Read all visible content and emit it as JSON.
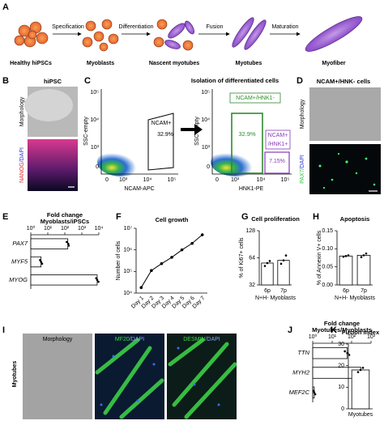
{
  "panel_labels": [
    "A",
    "B",
    "C",
    "D",
    "E",
    "F",
    "G",
    "H",
    "I",
    "J",
    "K"
  ],
  "schematic": {
    "stages": [
      "Healthy hiPSCs",
      "Myoblasts",
      "Nascent myotubes",
      "Myotubes",
      "Myofiber"
    ],
    "steps": [
      "Specification",
      "Differentiation",
      "Fusion",
      "Maturation"
    ]
  },
  "hipsc": {
    "title": "hiPSC",
    "row_label": "Morphology",
    "stain": [
      "NANOG",
      "/DAPI"
    ]
  },
  "flow": {
    "title": "Isolation of differentiated cells",
    "plots": [
      {
        "ylabel": "SSC-empty",
        "xlabel": "NCAM-APC",
        "yticks": [
          "10⁵",
          "10⁴",
          "10³",
          "0"
        ],
        "xticks": [
          "0",
          "10³",
          "10⁴",
          "10⁵"
        ],
        "gates": [
          {
            "label": [
              "NCAM+"
            ],
            "percent": "32.9%"
          }
        ]
      },
      {
        "ylabel": "SSC-empty",
        "xlabel": "HNK1-PE",
        "yticks": [
          "10⁵",
          "10⁴",
          "10³",
          "0"
        ],
        "xticks": [
          "0",
          "10³",
          "10⁴",
          "10⁵"
        ],
        "gates": [
          {
            "label": [
              "NCAM+/HNK1-"
            ],
            "percent": "32.9%"
          },
          {
            "label": [
              "NCAM+",
              "/HNK1+"
            ],
            "percent": "7.15%"
          }
        ]
      }
    ]
  },
  "ncam_cells": {
    "title": "NCAM+/HNK- cells",
    "row_label": "Morphology",
    "stain": [
      "PAX7",
      "/DAPI"
    ]
  },
  "myotubes": {
    "row_label": "Myotubes",
    "columns": [
      [
        "Morphology"
      ],
      [
        "MF20",
        "/DAPI"
      ],
      [
        "DESMIN",
        "/DAPI"
      ]
    ]
  },
  "chart_data": [
    {
      "type": "hbar",
      "title": "Fold change",
      "subtitle": "Myoblasts/iPSCs",
      "categories": [
        "PAX7",
        "MYF5",
        "MYOG"
      ],
      "values": [
        150,
        4,
        8000
      ],
      "replicates": [
        [
          130,
          160,
          170
        ],
        [
          3.5,
          4,
          4.6
        ],
        [
          7000,
          8000,
          9500
        ]
      ],
      "xlim": [
        1,
        10000
      ],
      "log_scale": true,
      "color": "#ffffff",
      "xticks": [
        {
          "value": 1,
          "label": "10⁰"
        },
        {
          "value": 10,
          "label": "10¹"
        },
        {
          "value": 100,
          "label": "10²"
        },
        {
          "value": 1000,
          "label": "10³"
        },
        {
          "value": 10000,
          "label": "10⁴"
        }
      ]
    },
    {
      "type": "line",
      "title": "Cell growth",
      "ylabel": "Number of cells",
      "categories": [
        "Day 1",
        "Day 2",
        "Day 3",
        "Day 4",
        "Day 5",
        "Day 6",
        "Day 7"
      ],
      "values": [
        18000,
        110000,
        230000,
        450000,
        1000000,
        2000000,
        5000000
      ],
      "ylim": [
        10000,
        10000000
      ],
      "log_scale": true,
      "color": "#000000",
      "yticks": [
        {
          "value": 10000,
          "label": "10⁴"
        },
        {
          "value": 100000,
          "label": "10⁵"
        },
        {
          "value": 1000000,
          "label": "10⁶"
        },
        {
          "value": 10000000,
          "label": "10⁷"
        }
      ]
    },
    {
      "type": "bar",
      "title": "Cell proliferation",
      "ylabel": "% of Ki67+ cells",
      "xlabel": "N+H- Myoblasts",
      "categories": [
        "6p",
        "7p"
      ],
      "values": [
        56,
        60
      ],
      "replicates": [
        [
          52,
          56,
          59
        ],
        [
          55,
          60,
          68
        ]
      ],
      "ylim": [
        32,
        128
      ],
      "log_scale": true,
      "color": "#ffffff",
      "yticks": [
        32,
        64,
        128
      ]
    },
    {
      "type": "bar",
      "title": "Apoptosis",
      "ylabel": "% of Annexin V+ cells",
      "xlabel": "N+H- Myoblasts",
      "categories": [
        "6p",
        "7p"
      ],
      "values": [
        0.08,
        0.082
      ],
      "replicates": [
        [
          0.078,
          0.08,
          0.082
        ],
        [
          0.077,
          0.082,
          0.087
        ]
      ],
      "ylim": [
        0,
        0.15
      ],
      "color": "#ffffff",
      "yticks": [
        {
          "value": 0,
          "label": "0.00"
        },
        {
          "value": 0.05,
          "label": "0.05"
        },
        {
          "value": 0.1,
          "label": "0.10"
        },
        {
          "value": 0.15,
          "label": "0.15"
        }
      ]
    },
    {
      "type": "hbar",
      "title": "Fold change",
      "subtitle": "Myotubes/Myoblasts",
      "categories": [
        "TTN",
        "MYH2",
        "MEF2C"
      ],
      "values": [
        60,
        300,
        1.2
      ],
      "replicates": [
        [
          45,
          60,
          75
        ],
        [
          250,
          300,
          350
        ],
        [
          1.1,
          1.2,
          1.35
        ]
      ],
      "xlim": [
        1,
        1000
      ],
      "log_scale": true,
      "color": "#ffffff",
      "xticks": [
        {
          "value": 1,
          "label": "10⁰"
        },
        {
          "value": 10,
          "label": "10¹"
        },
        {
          "value": 100,
          "label": "10²"
        },
        {
          "value": 1000,
          "label": "10³"
        }
      ]
    },
    {
      "type": "bar",
      "title": "Fusion index",
      "categories": [
        "Myotubes"
      ],
      "values": [
        18
      ],
      "replicates": [
        [
          17,
          18,
          19
        ]
      ],
      "ylim": [
        0,
        30
      ],
      "color": "#ffffff",
      "yticks": [
        0,
        10,
        20,
        30
      ]
    }
  ]
}
